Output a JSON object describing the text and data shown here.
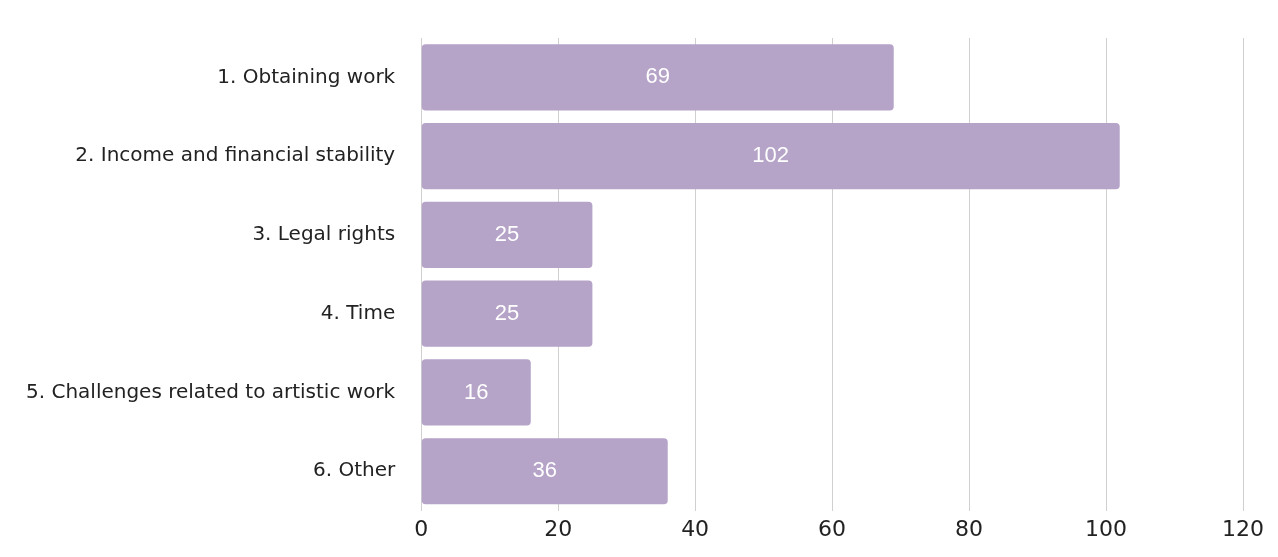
{
  "chart_data": {
    "type": "bar",
    "orientation": "horizontal",
    "categories": [
      "1. Obtaining work",
      "2. Income and financial stability",
      "3. Legal rights",
      "4. Time",
      "5. Challenges related to artistic work",
      "6. Other"
    ],
    "values": [
      69,
      102,
      25,
      25,
      16,
      36
    ],
    "color": "#b5a3c8",
    "xlim": [
      0,
      120
    ],
    "xticks": [
      0,
      20,
      40,
      60,
      80,
      100,
      120
    ],
    "grid": "x",
    "data_labels": true,
    "legend": false
  }
}
